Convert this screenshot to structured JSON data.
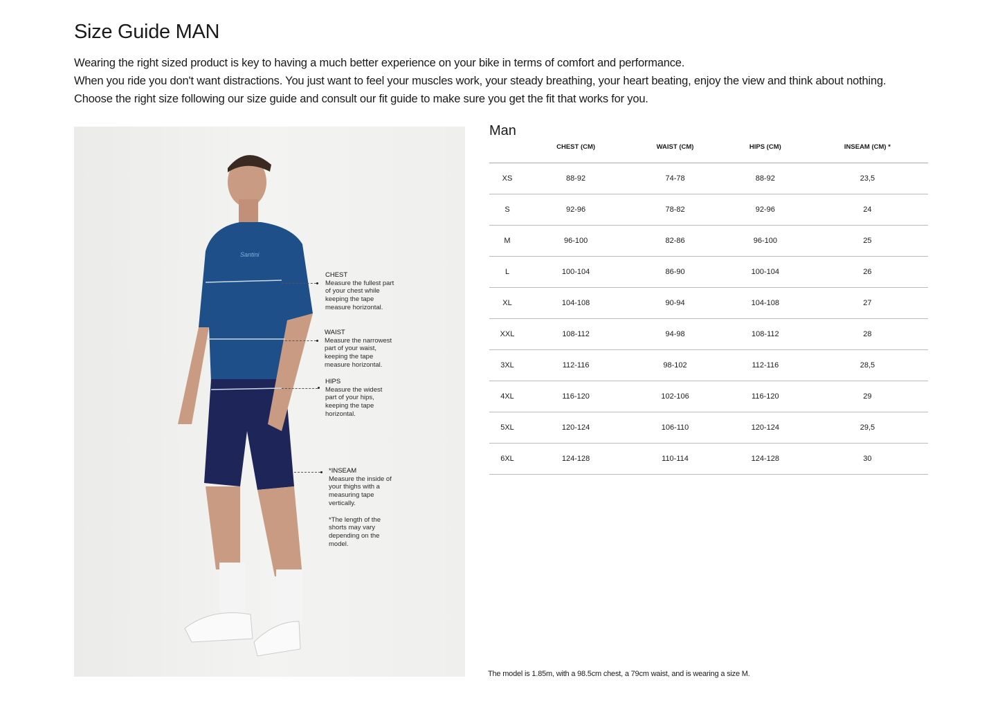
{
  "title": "Size Guide MAN",
  "intro": [
    "Wearing the right sized product is key to having a much better experience on your bike in terms of comfort and performance.",
    "When you ride you don't want distractions. You just want to feel your muscles work, your steady breathing, your heart beating, enjoy the view and think about nothing.",
    "Choose the right size following our size guide and consult our fit guide to make sure you get the fit that works for you."
  ],
  "image": {
    "brand_logo_text": "Santini",
    "annotations": [
      {
        "title": "CHEST",
        "text": "Measure the fullest part of your chest while keeping the tape measure horizontal."
      },
      {
        "title": "WAIST",
        "text": "Measure the narrowest part of your waist, keeping the tape measure horizontal."
      },
      {
        "title": "HIPS",
        "text": "Measure the widest part of your hips, keeping the tape horizontal."
      },
      {
        "title": "*INSEAM",
        "text": "Measure the inside of your thighs with a measuring tape vertically.",
        "note": "*The length of the shorts may vary depending on the model."
      }
    ]
  },
  "table": {
    "label": "Man",
    "headers": [
      "",
      "CHEST (CM)",
      "WAIST (CM)",
      "HIPS (CM)",
      "INSEAM (CM) *"
    ],
    "rows": [
      [
        "XS",
        "88-92",
        "74-78",
        "88-92",
        "23,5"
      ],
      [
        "S",
        "92-96",
        "78-82",
        "92-96",
        "24"
      ],
      [
        "M",
        "96-100",
        "82-86",
        "96-100",
        "25"
      ],
      [
        "L",
        "100-104",
        "86-90",
        "100-104",
        "26"
      ],
      [
        "XL",
        "104-108",
        "90-94",
        "104-108",
        "27"
      ],
      [
        "XXL",
        "108-112",
        "94-98",
        "108-112",
        "28"
      ],
      [
        "3XL",
        "112-116",
        "98-102",
        "112-116",
        "28,5"
      ],
      [
        "4XL",
        "116-120",
        "102-106",
        "116-120",
        "29"
      ],
      [
        "5XL",
        "120-124",
        "106-110",
        "120-124",
        "29,5"
      ],
      [
        "6XL",
        "124-128",
        "110-114",
        "124-128",
        "30"
      ]
    ]
  },
  "footnote": "The model is 1.85m, with a 98.5cm chest, a 79cm waist, and is wearing a size M."
}
